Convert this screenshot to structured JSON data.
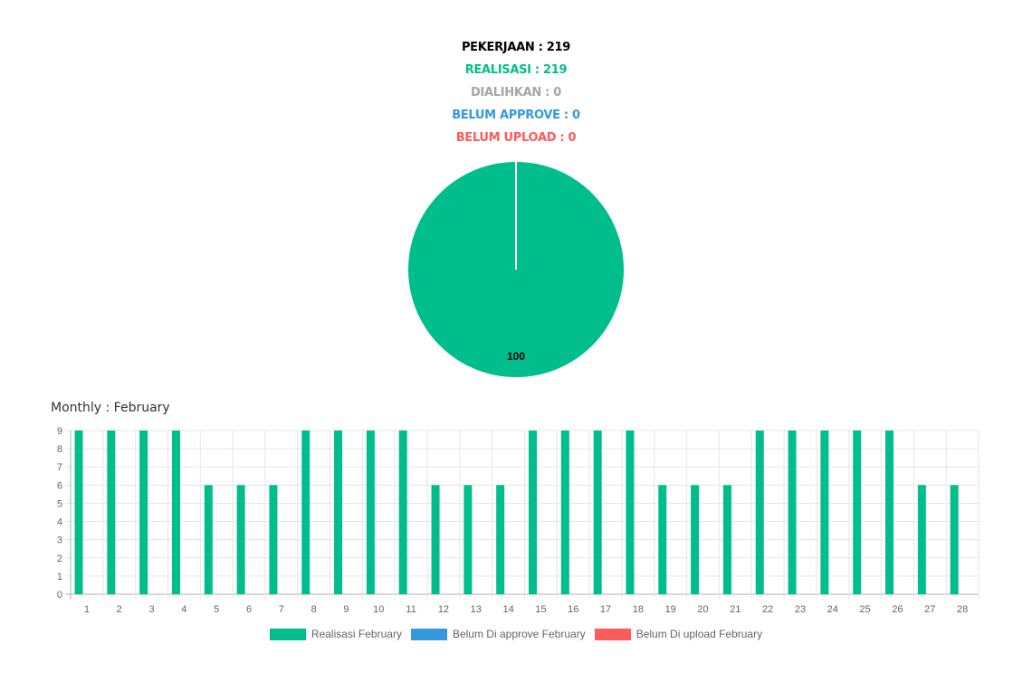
{
  "summary": {
    "pekerjaan": "PEKERJAAN : 219",
    "realisasi": "REALISASI : 219",
    "dialihkan": "DIALIHKAN : 0",
    "belum_approve": "BELUM APPROVE : 0",
    "belum_upload": "BELUM UPLOAD : 0"
  },
  "colors": {
    "pekerjaan": "#000000",
    "realisasi": "#00be8b",
    "dialihkan": "#a6a6a6",
    "belum_approve": "#3498db",
    "belum_upload": "#ff5b5b"
  },
  "chart_data": [
    {
      "type": "pie",
      "values": [
        100,
        0,
        0
      ],
      "data_labels": [
        "100"
      ],
      "colors": [
        "#00be8b",
        "#3498db",
        "#ff5b5b"
      ]
    },
    {
      "type": "bar",
      "title": "Monthly : February",
      "categories": [
        "1",
        "2",
        "3",
        "4",
        "5",
        "6",
        "7",
        "8",
        "9",
        "10",
        "11",
        "12",
        "13",
        "14",
        "15",
        "16",
        "17",
        "18",
        "19",
        "20",
        "21",
        "22",
        "23",
        "24",
        "25",
        "26",
        "27",
        "28"
      ],
      "series": [
        {
          "name": "Realisasi February",
          "color": "#00be8b",
          "values": [
            9,
            9,
            9,
            9,
            6,
            6,
            6,
            9,
            9,
            9,
            9,
            6,
            6,
            6,
            9,
            9,
            9,
            9,
            6,
            6,
            6,
            9,
            9,
            9,
            9,
            9,
            6,
            6
          ]
        },
        {
          "name": "Belum Di approve February",
          "color": "#3498db",
          "values": [
            0,
            0,
            0,
            0,
            0,
            0,
            0,
            0,
            0,
            0,
            0,
            0,
            0,
            0,
            0,
            0,
            0,
            0,
            0,
            0,
            0,
            0,
            0,
            0,
            0,
            0,
            0,
            0
          ]
        },
        {
          "name": "Belum Di upload February",
          "color": "#ff5b5b",
          "values": [
            0,
            0,
            0,
            0,
            0,
            0,
            0,
            0,
            0,
            0,
            0,
            0,
            0,
            0,
            0,
            0,
            0,
            0,
            0,
            0,
            0,
            0,
            0,
            0,
            0,
            0,
            0,
            0
          ]
        }
      ],
      "yticks": [
        "0",
        "1",
        "2",
        "3",
        "4",
        "5",
        "6",
        "7",
        "8",
        "9"
      ],
      "ylim": [
        0,
        9
      ],
      "grid": true,
      "legend_position": "bottom"
    }
  ]
}
